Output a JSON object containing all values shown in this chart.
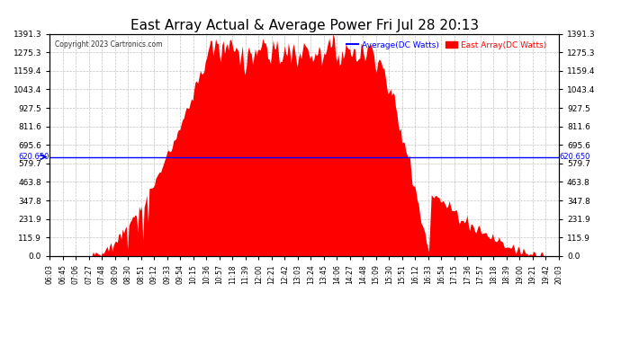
{
  "title": "East Array Actual & Average Power Fri Jul 28 20:13",
  "copyright": "Copyright 2023 Cartronics.com",
  "legend_avg": "Average(DC Watts)",
  "legend_east": "East Array(DC Watts)",
  "avg_value": 620.65,
  "ymax": 1391.3,
  "yticks": [
    0.0,
    115.9,
    231.9,
    347.8,
    463.8,
    579.7,
    695.6,
    811.6,
    927.5,
    1043.4,
    1159.4,
    1275.3,
    1391.3
  ],
  "fill_color": "#ff0000",
  "avg_line_color": "#0000ff",
  "background_color": "#ffffff",
  "grid_color": "#aaaaaa",
  "title_color": "#000000",
  "copyright_color": "#555555",
  "x_labels": [
    "06:03",
    "06:45",
    "07:06",
    "07:27",
    "07:48",
    "08:09",
    "08:30",
    "08:51",
    "09:12",
    "09:33",
    "09:54",
    "10:15",
    "10:36",
    "10:57",
    "11:18",
    "11:39",
    "12:00",
    "12:21",
    "12:42",
    "13:03",
    "13:24",
    "13:45",
    "14:06",
    "14:27",
    "14:48",
    "15:09",
    "15:30",
    "15:51",
    "16:12",
    "16:33",
    "16:54",
    "17:15",
    "17:36",
    "17:57",
    "18:18",
    "18:39",
    "19:00",
    "19:21",
    "19:42",
    "20:03"
  ]
}
